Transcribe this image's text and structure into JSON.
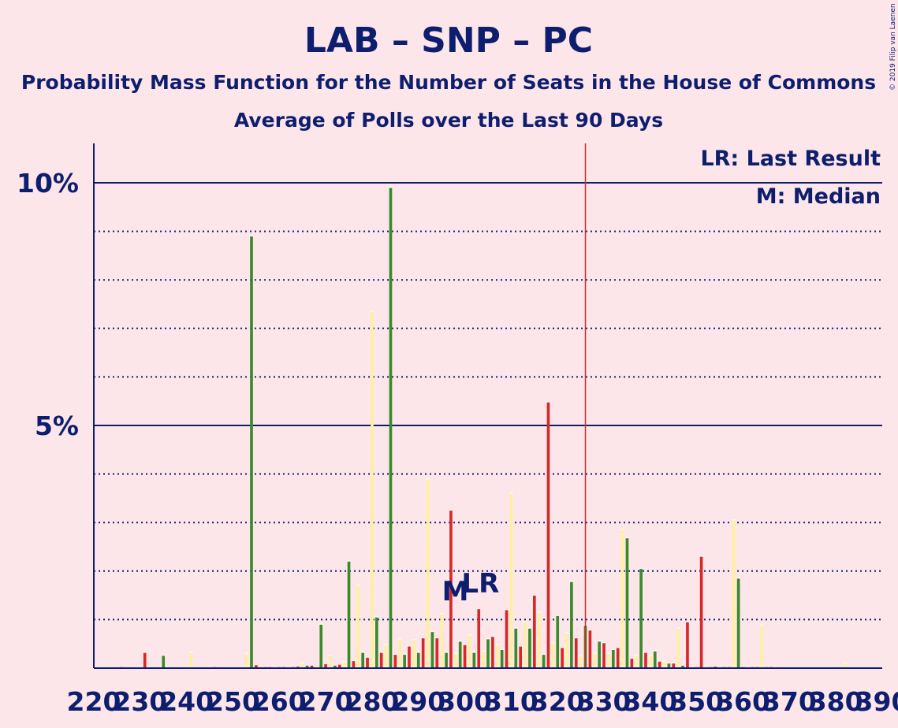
{
  "title": "LAB – SNP – PC",
  "subtitle1": "Probability Mass Function for the Number of Seats in the House of Commons",
  "subtitle2": "Average of Polls over the Last 90 Days",
  "copyright": "© 2019 Filip van Laenen",
  "legend": {
    "lr": "LR: Last Result",
    "m": "M: Median"
  },
  "markers": {
    "m": "M",
    "lr": "LR"
  },
  "colors": {
    "background": "#fde6ea",
    "axis": "#0e1e6e",
    "red": "#d62828",
    "yellow": "#fff0a0",
    "green": "#3a8a2a",
    "last_result_line": "#d62828"
  },
  "chart_data": {
    "type": "bar",
    "xlim": [
      220,
      390
    ],
    "ylim": [
      0,
      10.8
    ],
    "y_ticks": [
      {
        "value": 5,
        "label": "5%"
      },
      {
        "value": 10,
        "label": "10%"
      }
    ],
    "y_minor_ticks": [
      1,
      2,
      3,
      4,
      6,
      7,
      8,
      9
    ],
    "x_ticks": [
      {
        "value": 220,
        "label": "220"
      },
      {
        "value": 230,
        "label": "230"
      },
      {
        "value": 240,
        "label": "240"
      },
      {
        "value": 250,
        "label": "250"
      },
      {
        "value": 260,
        "label": "260"
      },
      {
        "value": 270,
        "label": "270"
      },
      {
        "value": 280,
        "label": "280"
      },
      {
        "value": 290,
        "label": "290"
      },
      {
        "value": 300,
        "label": "300"
      },
      {
        "value": 310,
        "label": "310"
      },
      {
        "value": 320,
        "label": "320"
      },
      {
        "value": 330,
        "label": "330"
      },
      {
        "value": 340,
        "label": "340"
      },
      {
        "value": 350,
        "label": "350"
      },
      {
        "value": 360,
        "label": "360"
      },
      {
        "value": 370,
        "label": "370"
      },
      {
        "value": 380,
        "label": "380"
      },
      {
        "value": 390,
        "label": "390"
      }
    ],
    "median": 300,
    "last_result": 302,
    "last_result_line": 326,
    "series": [
      {
        "color": "red",
        "values": [
          [
            223,
            0.01
          ],
          [
            226,
            0.02
          ],
          [
            229,
            0.01
          ],
          [
            231,
            0.32
          ],
          [
            234,
            0.01
          ],
          [
            237,
            0.01
          ],
          [
            240,
            0.01
          ],
          [
            243,
            0.01
          ],
          [
            246,
            0.02
          ],
          [
            249,
            0.01
          ],
          [
            252,
            0.01
          ],
          [
            255,
            0.06
          ],
          [
            258,
            0.02
          ],
          [
            261,
            0.02
          ],
          [
            264,
            0.03
          ],
          [
            267,
            0.05
          ],
          [
            270,
            0.08
          ],
          [
            273,
            0.07
          ],
          [
            276,
            0.15
          ],
          [
            279,
            0.22
          ],
          [
            282,
            0.32
          ],
          [
            285,
            0.28
          ],
          [
            288,
            0.45
          ],
          [
            291,
            0.62
          ],
          [
            294,
            0.62
          ],
          [
            297,
            3.25
          ],
          [
            300,
            0.48
          ],
          [
            303,
            1.22
          ],
          [
            306,
            0.65
          ],
          [
            309,
            1.2
          ],
          [
            312,
            0.45
          ],
          [
            315,
            1.5
          ],
          [
            318,
            5.48
          ],
          [
            321,
            0.42
          ],
          [
            324,
            0.62
          ],
          [
            327,
            0.78
          ],
          [
            330,
            0.52
          ],
          [
            333,
            0.42
          ],
          [
            336,
            0.2
          ],
          [
            339,
            0.32
          ],
          [
            342,
            0.14
          ],
          [
            345,
            0.1
          ],
          [
            348,
            0.95
          ],
          [
            351,
            2.3
          ],
          [
            354,
            0.03
          ],
          [
            357,
            0.02
          ],
          [
            360,
            0.02
          ],
          [
            363,
            0.02
          ],
          [
            366,
            0.02
          ],
          [
            369,
            0.01
          ],
          [
            372,
            0.01
          ],
          [
            375,
            0.01
          ],
          [
            378,
            0.01
          ],
          [
            381,
            0.01
          ],
          [
            384,
            0.01
          ],
          [
            387,
            0.01
          ]
        ]
      },
      {
        "color": "yellow",
        "values": [
          [
            222,
            0.01
          ],
          [
            225,
            0.01
          ],
          [
            228,
            0.01
          ],
          [
            230,
            0.02
          ],
          [
            233,
            0.01
          ],
          [
            236,
            0.02
          ],
          [
            239,
            0.02
          ],
          [
            241,
            0.32
          ],
          [
            244,
            0.01
          ],
          [
            247,
            0.02
          ],
          [
            250,
            0.02
          ],
          [
            253,
            0.3
          ],
          [
            256,
            0.05
          ],
          [
            259,
            0.02
          ],
          [
            262,
            0.03
          ],
          [
            265,
            0.1
          ],
          [
            268,
            0.05
          ],
          [
            271,
            0.26
          ],
          [
            274,
            0.12
          ],
          [
            277,
            1.7
          ],
          [
            280,
            7.35
          ],
          [
            283,
            0.48
          ],
          [
            286,
            0.6
          ],
          [
            289,
            0.58
          ],
          [
            292,
            3.9
          ],
          [
            295,
            1.12
          ],
          [
            298,
            0.3
          ],
          [
            301,
            0.68
          ],
          [
            304,
            0.35
          ],
          [
            307,
            0.48
          ],
          [
            310,
            3.6
          ],
          [
            313,
            0.95
          ],
          [
            316,
            1.15
          ],
          [
            319,
            0.52
          ],
          [
            322,
            0.72
          ],
          [
            325,
            0.25
          ],
          [
            328,
            0.3
          ],
          [
            331,
            0.3
          ],
          [
            334,
            2.85
          ],
          [
            337,
            0.25
          ],
          [
            340,
            0.25
          ],
          [
            343,
            0.14
          ],
          [
            346,
            0.82
          ],
          [
            349,
            0.02
          ],
          [
            352,
            0.03
          ],
          [
            355,
            0.03
          ],
          [
            358,
            3.05
          ],
          [
            361,
            0.02
          ],
          [
            364,
            0.88
          ],
          [
            367,
            0.01
          ],
          [
            370,
            0.01
          ],
          [
            373,
            0.01
          ],
          [
            376,
            0.01
          ],
          [
            379,
            0.01
          ],
          [
            382,
            0.1
          ],
          [
            385,
            0.01
          ],
          [
            388,
            0.01
          ]
        ]
      },
      {
        "color": "green",
        "values": [
          [
            221,
            0.01
          ],
          [
            224,
            0.01
          ],
          [
            227,
            0.01
          ],
          [
            232,
            0.01
          ],
          [
            235,
            0.26
          ],
          [
            238,
            0.01
          ],
          [
            242,
            0.01
          ],
          [
            245,
            0.01
          ],
          [
            248,
            0.01
          ],
          [
            251,
            0.01
          ],
          [
            254,
            8.9
          ],
          [
            257,
            0.02
          ],
          [
            260,
            0.02
          ],
          [
            263,
            0.02
          ],
          [
            266,
            0.05
          ],
          [
            269,
            0.9
          ],
          [
            272,
            0.05
          ],
          [
            275,
            2.2
          ],
          [
            278,
            0.32
          ],
          [
            281,
            1.05
          ],
          [
            284,
            9.9
          ],
          [
            287,
            0.28
          ],
          [
            290,
            0.32
          ],
          [
            293,
            0.75
          ],
          [
            296,
            0.32
          ],
          [
            299,
            0.55
          ],
          [
            302,
            0.32
          ],
          [
            305,
            0.6
          ],
          [
            308,
            0.38
          ],
          [
            311,
            0.82
          ],
          [
            314,
            0.82
          ],
          [
            317,
            0.28
          ],
          [
            320,
            1.08
          ],
          [
            323,
            1.78
          ],
          [
            326,
            0.88
          ],
          [
            329,
            0.55
          ],
          [
            332,
            0.38
          ],
          [
            335,
            2.68
          ],
          [
            338,
            2.05
          ],
          [
            341,
            0.35
          ],
          [
            344,
            0.1
          ],
          [
            347,
            0.05
          ],
          [
            350,
            0.02
          ],
          [
            353,
            0.02
          ],
          [
            356,
            0.02
          ],
          [
            359,
            1.85
          ],
          [
            362,
            0.02
          ],
          [
            365,
            0.02
          ],
          [
            368,
            0.01
          ],
          [
            371,
            0.01
          ],
          [
            374,
            0.01
          ],
          [
            377,
            0.01
          ],
          [
            380,
            0.01
          ],
          [
            383,
            0.01
          ],
          [
            386,
            0.01
          ],
          [
            389,
            0.01
          ]
        ]
      }
    ]
  }
}
